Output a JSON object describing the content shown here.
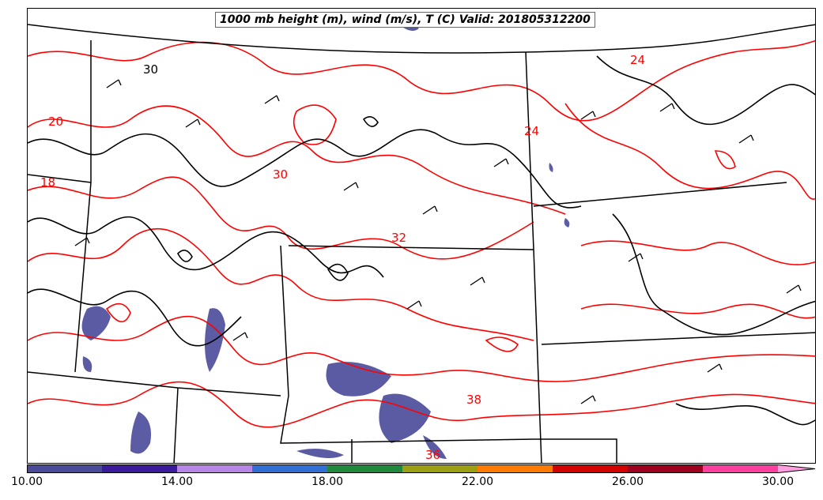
{
  "title": "1000 mb height (m), wind (m/s), T (C) Valid: 201805312200",
  "colors": {
    "temperature_contour": "#ff0000",
    "height_contour": "#000000",
    "border": "#000000",
    "wind_barb": "#000000"
  },
  "contour_labels": [
    {
      "text": "30",
      "color": "#000000"
    },
    {
      "text": "20",
      "color": "#ff0000"
    },
    {
      "text": "18",
      "color": "#ff0000"
    },
    {
      "text": "30",
      "color": "#ff0000"
    },
    {
      "text": "32",
      "color": "#ff0000"
    },
    {
      "text": "24",
      "color": "#ff0000"
    },
    {
      "text": "24",
      "color": "#ff0000"
    },
    {
      "text": "38",
      "color": "#ff0000"
    },
    {
      "text": "36",
      "color": "#ff0000"
    }
  ],
  "colorbar": {
    "min": 10,
    "max": 32,
    "bins": [
      {
        "from": 10,
        "to": 12,
        "color": "#4a4a9a"
      },
      {
        "from": 12,
        "to": 14,
        "color": "#3b1a9c"
      },
      {
        "from": 14,
        "to": 16,
        "color": "#b886e8"
      },
      {
        "from": 16,
        "to": 18,
        "color": "#2f6fd6"
      },
      {
        "from": 18,
        "to": 20,
        "color": "#1f8a3c"
      },
      {
        "from": 20,
        "to": 22,
        "color": "#9aa012"
      },
      {
        "from": 22,
        "to": 24,
        "color": "#ff7a00"
      },
      {
        "from": 24,
        "to": 26,
        "color": "#d40000"
      },
      {
        "from": 26,
        "to": 28,
        "color": "#a00020"
      },
      {
        "from": 28,
        "to": 30,
        "color": "#ff3f9f"
      },
      {
        "from": 30,
        "to": 32,
        "color": "#ff9fdf"
      }
    ],
    "ticks": [
      {
        "value": 10,
        "label": "10.00"
      },
      {
        "value": 14,
        "label": "14.00"
      },
      {
        "value": 18,
        "label": "18.00"
      },
      {
        "value": 22,
        "label": "22.00"
      },
      {
        "value": 26,
        "label": "26.00"
      },
      {
        "value": 30,
        "label": "30.00"
      }
    ]
  }
}
